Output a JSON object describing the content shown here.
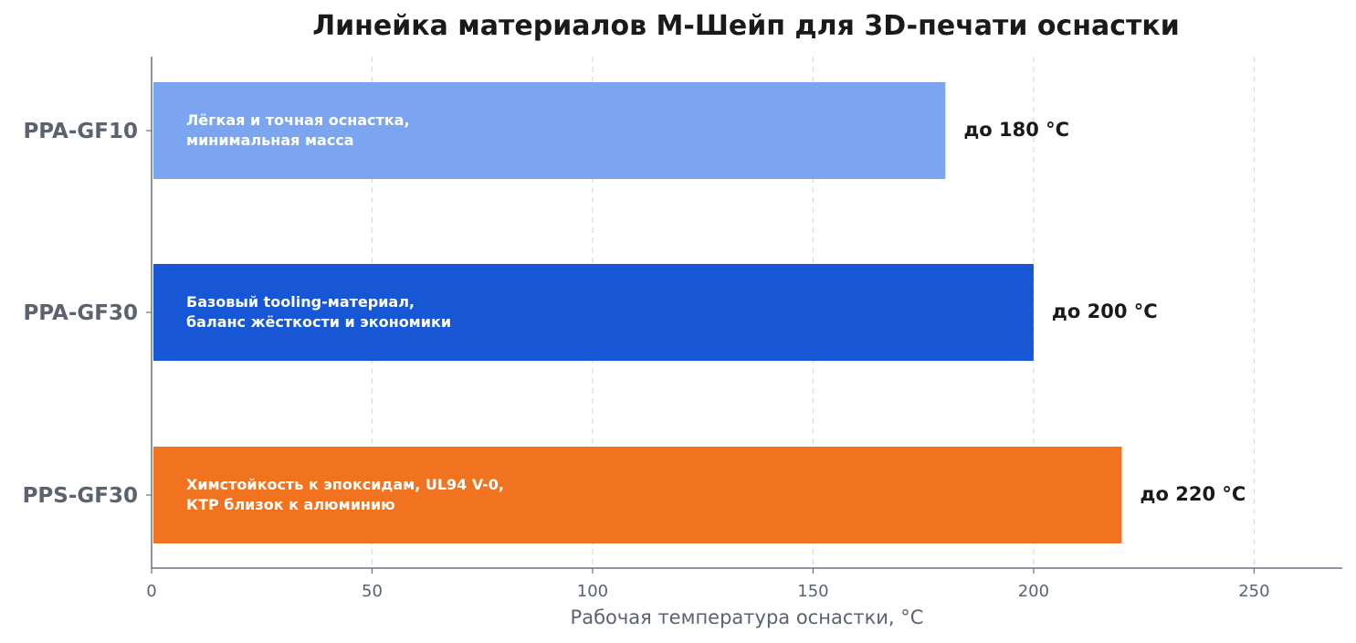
{
  "chart_data": {
    "type": "bar",
    "orientation": "horizontal",
    "title": "Линейка материалов М-Шейп для 3D-печати оснастки",
    "xlabel": "Рабочая температура оснастки, °C",
    "ylabel": "",
    "xlim": [
      0,
      270
    ],
    "xticks": [
      "0",
      "50",
      "100",
      "150",
      "200",
      "250"
    ],
    "grid": "x, dashed",
    "categories": [
      "PPA-GF10",
      "PPA-GF30",
      "PPS-GF30"
    ],
    "values": [
      180,
      200,
      220
    ],
    "value_labels": [
      "до 180 °C",
      "до 200 °C",
      "до 220 °C"
    ],
    "descriptions": [
      [
        "Лёгкая и точная оснастка,",
        "минимальная масса"
      ],
      [
        "Базовый tooling-материал,",
        "баланс жёсткости и экономики"
      ],
      [
        "Химстойкость к эпоксидам, UL94 V-0,",
        "КТР близок к алюминию"
      ]
    ],
    "colors": [
      "#7ba5f0",
      "#1757d6",
      "#f2731f"
    ]
  }
}
